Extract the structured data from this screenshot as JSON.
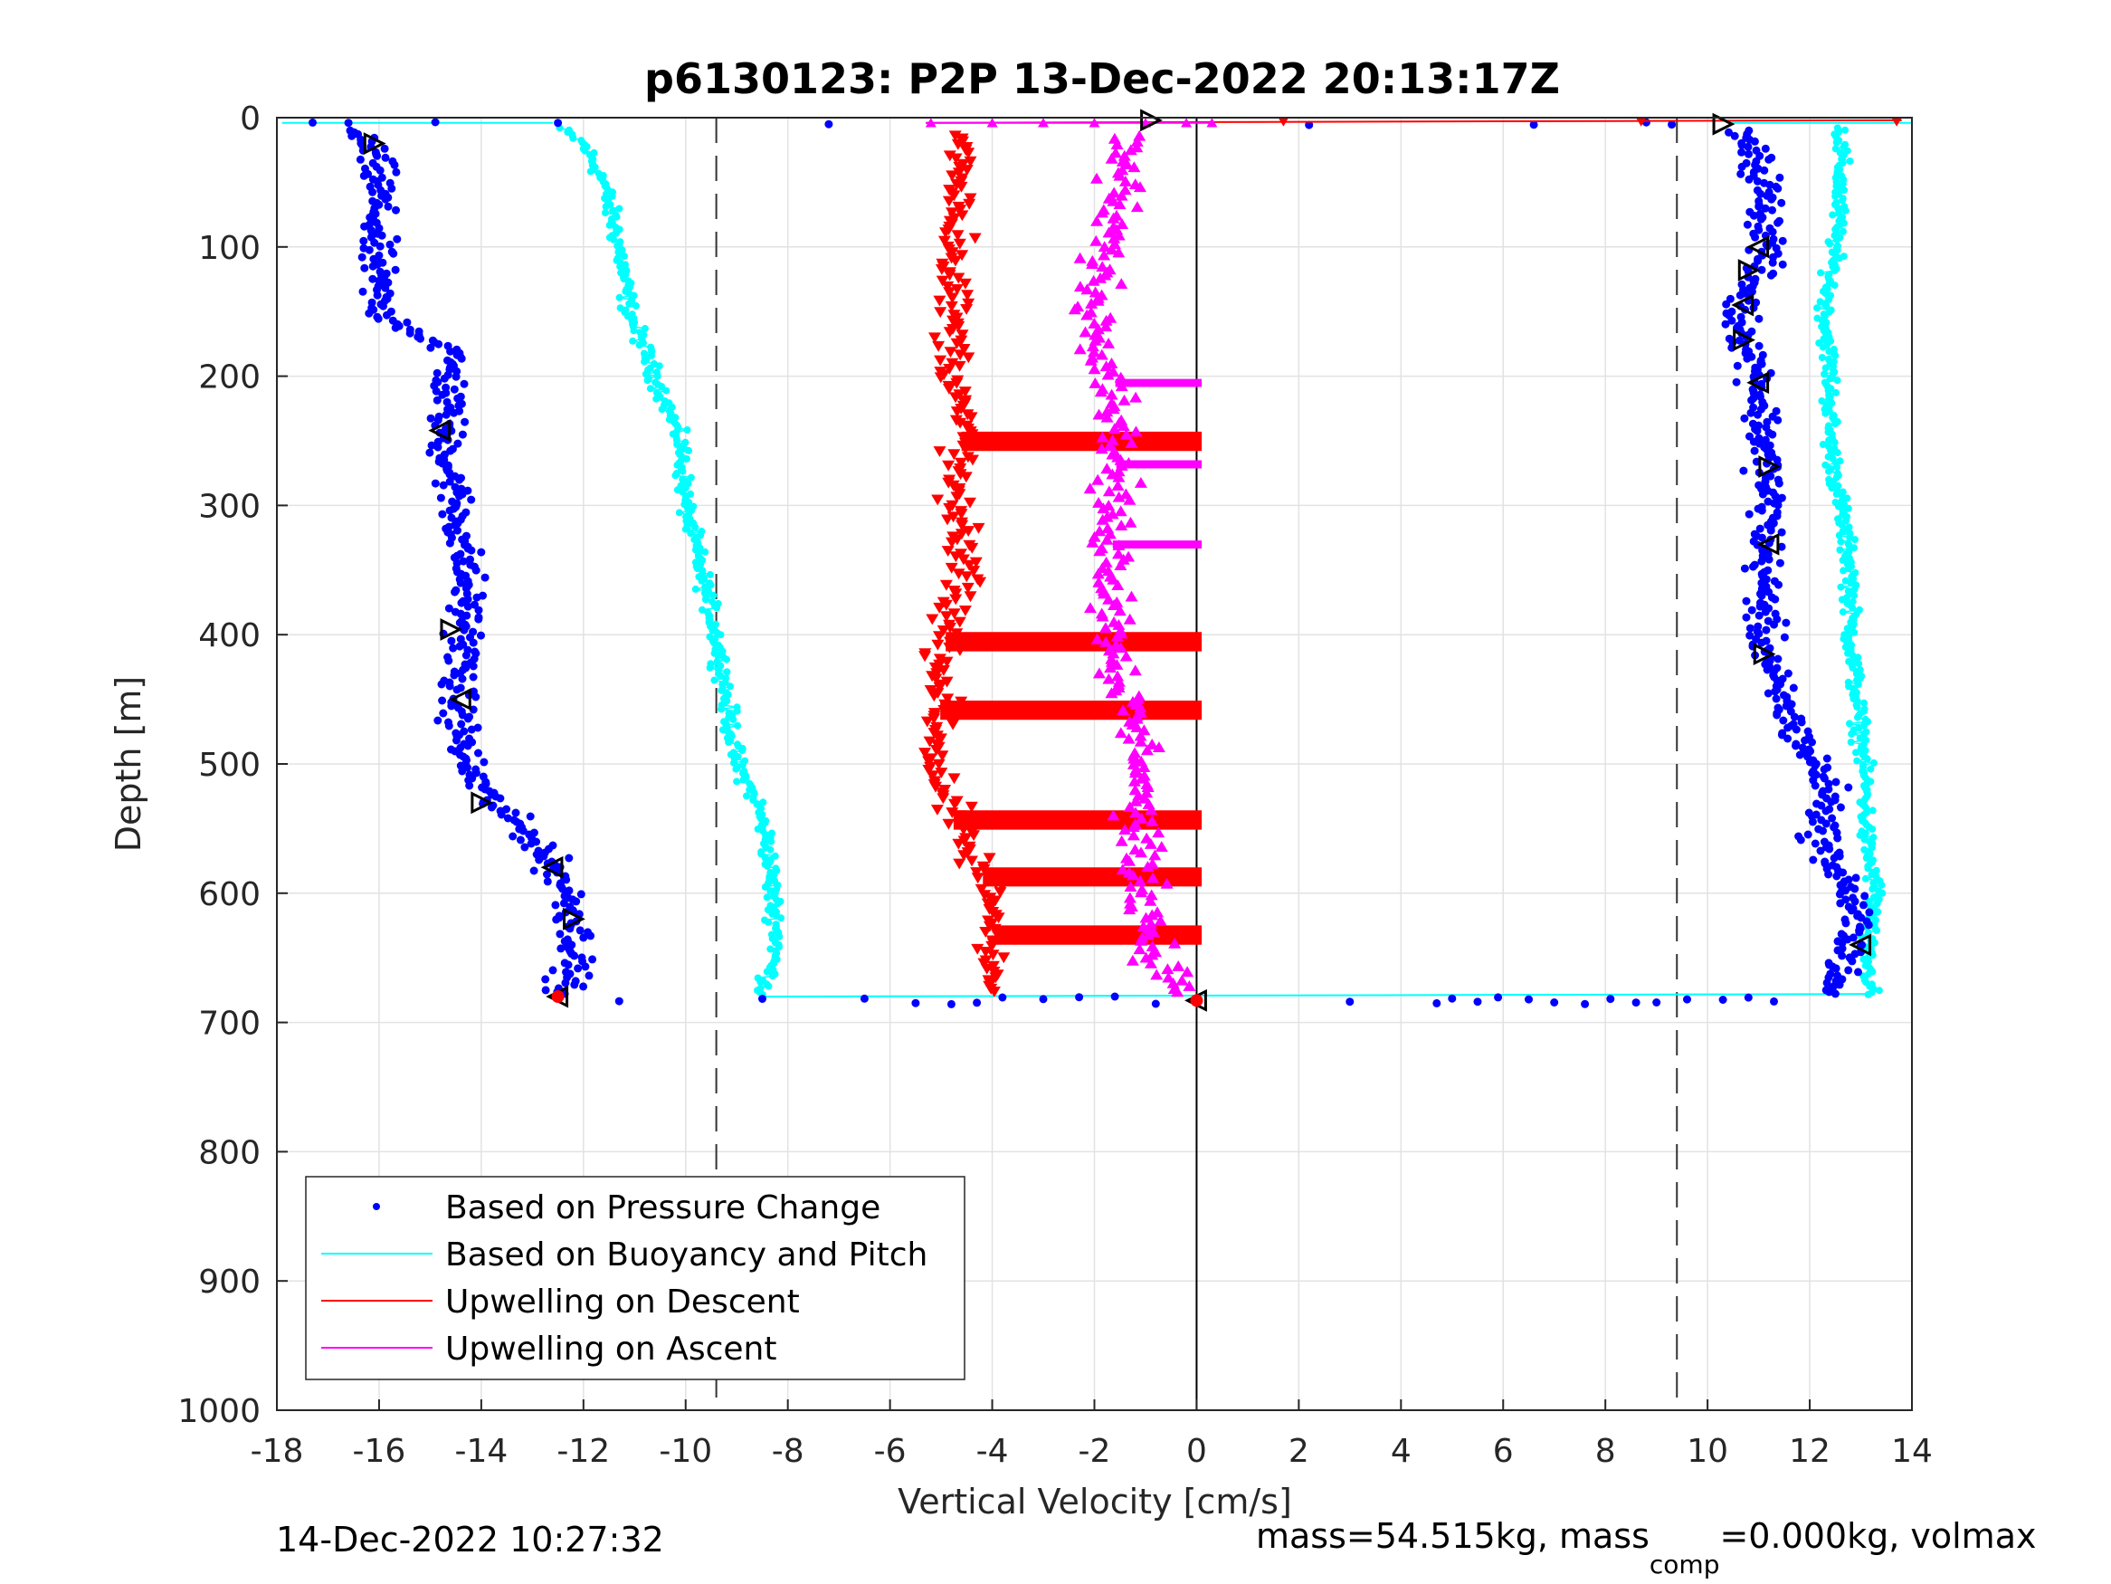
{
  "chart_data": {
    "type": "scatter",
    "title": "p6130123: P2P 13-Dec-2022 20:13:17Z",
    "xlabel": "Vertical Velocity [cm/s]",
    "ylabel": "Depth [m]",
    "xlim": [
      -18,
      14
    ],
    "ylim": [
      0,
      1000
    ],
    "y_reversed": true,
    "grid": true,
    "x_ticks": [
      "-18",
      "-16",
      "-14",
      "-12",
      "-10",
      "-8",
      "-6",
      "-4",
      "-2",
      "0",
      "2",
      "4",
      "6",
      "8",
      "10",
      "12",
      "14"
    ],
    "y_ticks": [
      "0",
      "100",
      "200",
      "300",
      "400",
      "500",
      "600",
      "700",
      "800",
      "900",
      "1000"
    ],
    "reference_lines": {
      "dashed_x": [
        -9.4,
        9.4
      ],
      "solid_x": [
        0
      ]
    },
    "legend_position": "bottom-left",
    "legend": [
      "Based on Pressure Change",
      "Based on Buoyancy and Pitch",
      "Upwelling on Descent",
      "Upwelling on Ascent"
    ],
    "colors": {
      "pressure": "#0000ff",
      "buoyancy": "#00ffff",
      "descent": "#ff0000",
      "ascent": "#ff00ff"
    },
    "series": [
      {
        "name": "Based on Pressure Change",
        "style": "dots",
        "profiles": [
          {
            "depth": [
              5,
              20,
              50,
              100,
              150,
              180,
              250,
              300,
              350,
              400,
              450,
              500,
              530,
              560,
              600,
              640,
              680
            ],
            "velocity": [
              -16.8,
              -16.2,
              -16.0,
              -16.1,
              -16.0,
              -14.6,
              -14.7,
              -14.5,
              -14.3,
              -14.3,
              -14.5,
              -14.3,
              -13.8,
              -12.9,
              -12.3,
              -12.1,
              -12.4
            ]
          },
          {
            "depth": [
              670,
              640,
              600,
              560,
              520,
              480,
              440,
              400,
              350,
              300,
              250,
              200,
              150,
              100,
              50,
              20,
              5
            ],
            "velocity": [
              12.4,
              12.9,
              12.8,
              12.2,
              12.4,
              11.8,
              11.3,
              11.1,
              11.1,
              11.2,
              11.1,
              11.0,
              10.6,
              11.2,
              11.1,
              10.8,
              10.3
            ]
          }
        ]
      },
      {
        "name": "Based on Buoyancy and Pitch",
        "style": "line",
        "profiles": [
          {
            "depth": [
              5,
              20,
              50,
              100,
              150,
              200,
              250,
              300,
              350,
              400,
              450,
              500,
              530,
              560,
              600,
              640,
              680
            ],
            "velocity": [
              -12.6,
              -12.0,
              -11.6,
              -11.3,
              -11.1,
              -10.6,
              -10.1,
              -10.0,
              -9.7,
              -9.4,
              -9.2,
              -9.0,
              -8.6,
              -8.4,
              -8.3,
              -8.2,
              -8.5
            ]
          },
          {
            "depth": [
              680,
              640,
              600,
              560,
              520,
              480,
              440,
              400,
              350,
              300,
              250,
              200,
              150,
              100,
              50,
              20,
              5
            ],
            "velocity": [
              13.2,
              13.1,
              13.3,
              13.1,
              13.1,
              13.0,
              12.9,
              12.8,
              12.8,
              12.6,
              12.4,
              12.4,
              12.3,
              12.5,
              12.6,
              12.6,
              12.6
            ]
          }
        ]
      },
      {
        "name": "Upwelling on Descent",
        "style": "triangles-down",
        "depth": [
          15,
          50,
          100,
          150,
          200,
          250,
          300,
          350,
          400,
          450,
          500,
          550,
          600,
          650,
          680
        ],
        "velocity": [
          -4.6,
          -4.6,
          -4.7,
          -4.8,
          -4.7,
          -4.6,
          -4.8,
          -4.5,
          -4.9,
          -5.0,
          -5.1,
          -4.7,
          -4.0,
          -3.9,
          -4.1
        ]
      },
      {
        "name": "Upwelling on Ascent",
        "style": "triangles-up",
        "depth": [
          680,
          650,
          600,
          550,
          500,
          450,
          400,
          350,
          300,
          250,
          200,
          150,
          100,
          50,
          15
        ],
        "velocity": [
          -0.2,
          -0.8,
          -1.0,
          -1.2,
          -1.0,
          -1.4,
          -1.6,
          -1.6,
          -1.7,
          -1.5,
          -1.6,
          -2.0,
          -1.8,
          -1.5,
          -1.4
        ]
      }
    ],
    "descent_bands_depth": [
      250,
      405,
      458,
      543,
      587,
      632
    ],
    "ascent_bands_depth": [
      205,
      268,
      330
    ],
    "markers": [
      {
        "x": -16.1,
        "y": 20
      },
      {
        "x": -14.8,
        "y": 242
      },
      {
        "x": -14.6,
        "y": 396
      },
      {
        "x": -14.4,
        "y": 450
      },
      {
        "x": -14.0,
        "y": 530
      },
      {
        "x": -12.6,
        "y": 580
      },
      {
        "x": -12.2,
        "y": 620
      },
      {
        "x": -12.5,
        "y": 680
      },
      {
        "x": 10.3,
        "y": 5
      },
      {
        "x": 11.0,
        "y": 100
      },
      {
        "x": 10.8,
        "y": 118
      },
      {
        "x": 10.7,
        "y": 145
      },
      {
        "x": 10.7,
        "y": 172
      },
      {
        "x": 11.0,
        "y": 205
      },
      {
        "x": 11.2,
        "y": 270
      },
      {
        "x": 11.2,
        "y": 330
      },
      {
        "x": 11.1,
        "y": 415
      },
      {
        "x": 13.0,
        "y": 640
      },
      {
        "x": -0.9,
        "y": 2
      },
      {
        "x": 0.0,
        "y": 683
      }
    ]
  },
  "legend_labels": {
    "pressure": "Based on Pressure Change",
    "buoyancy": "Based on Buoyancy and Pitch",
    "descent": "Upwelling on Descent",
    "ascent": "Upwelling on Ascent"
  },
  "footer": {
    "timestamp": "14-Dec-2022 10:27:32",
    "mass_text": "mass=54.515kg, mass",
    "mass_sub": "comp",
    "mass_tail": "=0.000kg, volmax"
  }
}
